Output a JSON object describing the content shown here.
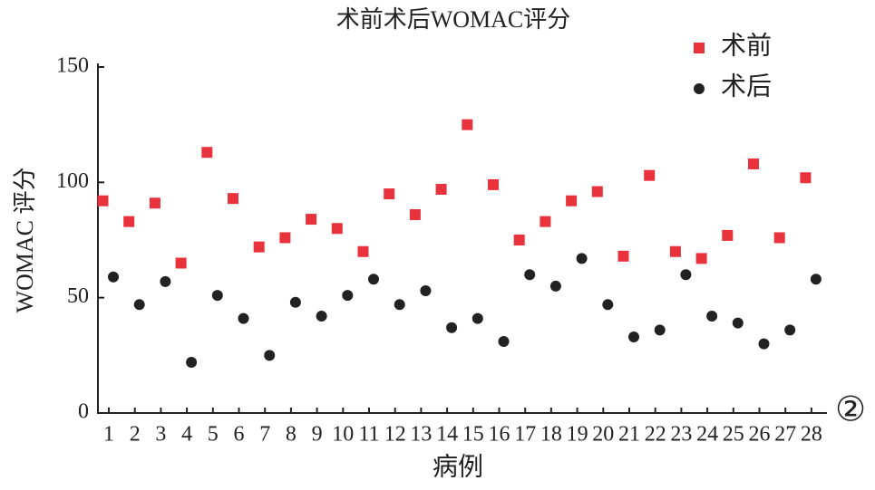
{
  "chart_data": {
    "type": "scatter",
    "title": "术前术后WOMAC评分",
    "x_label": "病例",
    "y_label": "WOMAC 评分",
    "panel_label": "②",
    "categories": [
      "1",
      "2",
      "3",
      "4",
      "5",
      "6",
      "7",
      "8",
      "9",
      "10",
      "11",
      "12",
      "13",
      "14",
      "15",
      "16",
      "17",
      "18",
      "19",
      "20",
      "21",
      "22",
      "23",
      "24",
      "25",
      "26",
      "27",
      "28"
    ],
    "series": [
      {
        "name": "术前",
        "color": "#e8323c",
        "marker": "square",
        "values": [
          92,
          83,
          91,
          65,
          113,
          93,
          72,
          76,
          84,
          80,
          70,
          95,
          86,
          97,
          125,
          99,
          75,
          83,
          92,
          96,
          68,
          103,
          70,
          67,
          77,
          108,
          76,
          102
        ]
      },
      {
        "name": "术后",
        "color": "#222222",
        "marker": "circle",
        "values": [
          59,
          47,
          57,
          22,
          51,
          41,
          25,
          48,
          42,
          51,
          58,
          47,
          53,
          37,
          41,
          31,
          60,
          55,
          67,
          47,
          33,
          36,
          60,
          42,
          39,
          30,
          36,
          58
        ]
      }
    ],
    "ylim": [
      0,
      150
    ],
    "yticks": [
      0,
      50,
      100,
      150
    ],
    "legend": "upper right"
  }
}
